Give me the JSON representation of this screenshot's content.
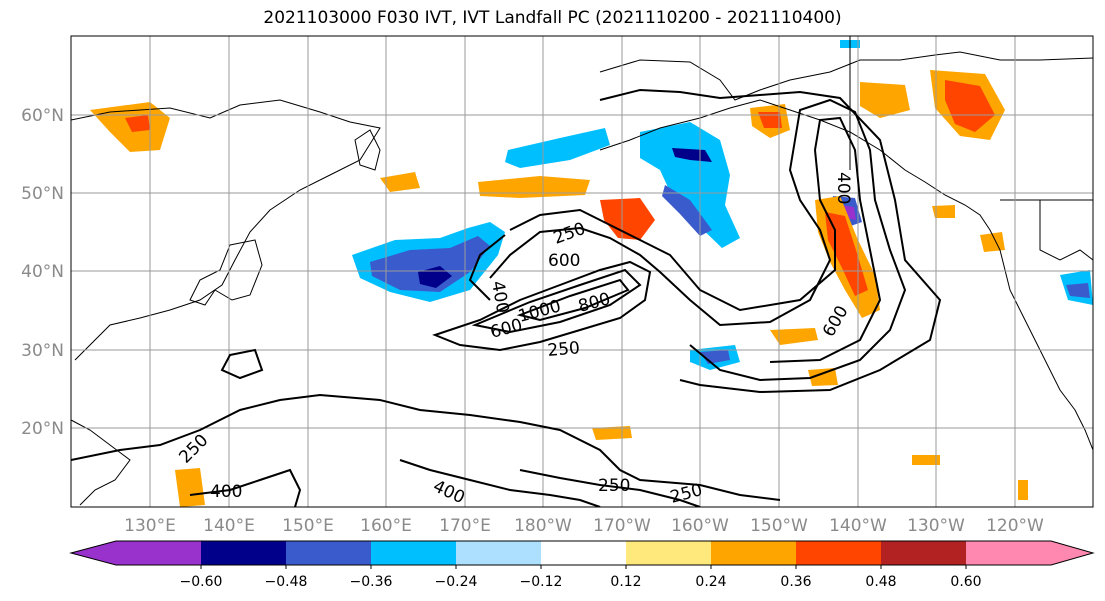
{
  "title": "2021103000 F030 IVT, IVT Landfall PC (2021110200 - 2021110400)",
  "lat_labels": [
    "60°N",
    "50°N",
    "40°N",
    "30°N",
    "20°N"
  ],
  "lon_labels": [
    "130°E",
    "140°E",
    "150°E",
    "160°E",
    "170°E",
    "180°W",
    "170°W",
    "160°W",
    "150°W",
    "140°W",
    "130°W",
    "120°W"
  ],
  "contour_labels": [
    "250",
    "600",
    "400",
    "1000",
    "800",
    "600",
    "250",
    "400",
    "600",
    "250",
    "400",
    "400",
    "250",
    "250"
  ],
  "colorbar": {
    "ticks": [
      "−0.60",
      "−0.48",
      "−0.36",
      "−0.24",
      "−0.12",
      "0.12",
      "0.24",
      "0.36",
      "0.48",
      "0.60"
    ],
    "colors": [
      "#9932CC",
      "#00008B",
      "#3A5BCB",
      "#00BFFF",
      "#ADDFFF",
      "#FFFFFF",
      "#FFE87C",
      "#FFA500",
      "#FF4500",
      "#B22222",
      "#FF88B0"
    ]
  },
  "colors": {
    "coast": "#000000",
    "grid": "#9a9a9a",
    "contour": "#000000"
  }
}
